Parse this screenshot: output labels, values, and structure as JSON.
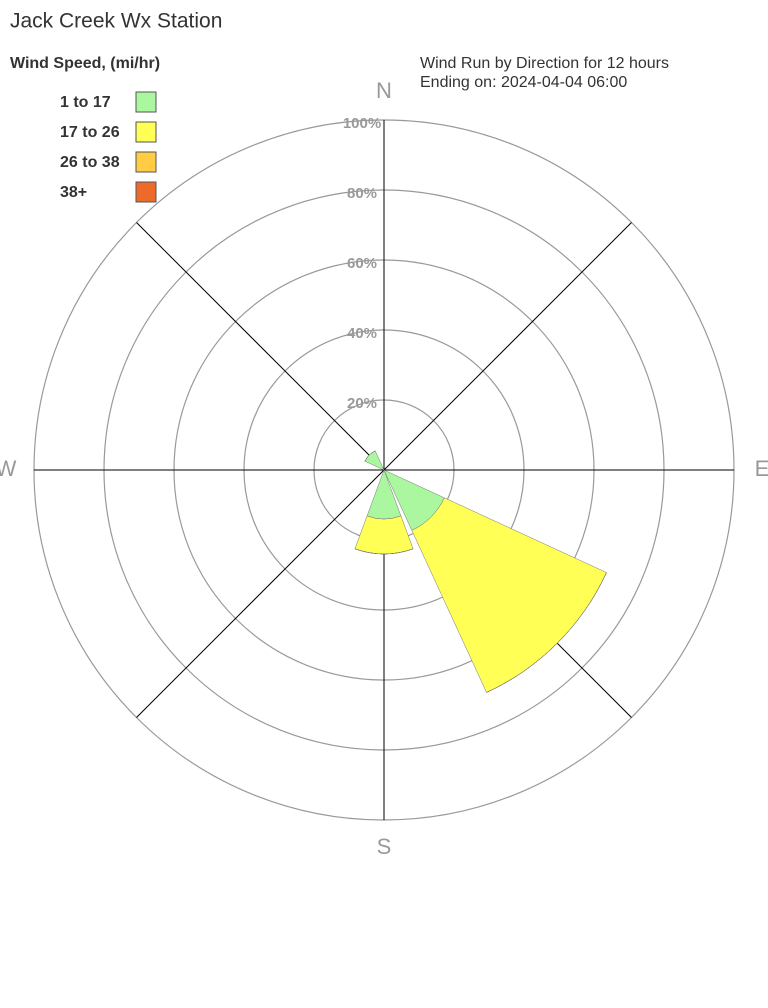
{
  "chart_data": {
    "type": "windrose",
    "title": "Jack Creek Wx Station",
    "legend_title": "Wind Speed, (mi/hr)",
    "subtitle": [
      "Wind Run by Direction for 12 hours",
      "Ending on: 2024-04-04 06:00"
    ],
    "categories": [
      "N",
      null,
      "E",
      null,
      "S",
      null,
      "W",
      null
    ],
    "series": [
      {
        "name": "1 to 17",
        "color": "#aaf7a0",
        "values": [
          0,
          0,
          0,
          19,
          14,
          0,
          0,
          6
        ]
      },
      {
        "name": "17 to 26",
        "color": "#ffff55",
        "values": [
          0,
          0,
          0,
          51,
          10,
          0,
          0,
          0
        ]
      },
      {
        "name": "26 to 38",
        "color": "#ffcc44",
        "values": [
          0,
          0,
          0,
          0,
          0,
          0,
          0,
          0
        ]
      },
      {
        "name": "38+",
        "color": "#ee6a2a",
        "values": [
          0,
          0,
          0,
          0,
          0,
          0,
          0,
          0
        ]
      }
    ],
    "rlim": [
      0,
      100
    ],
    "rticks": [
      {
        "value": 20,
        "label": "20%"
      },
      {
        "value": 40,
        "label": "40%"
      },
      {
        "value": 60,
        "label": "60%"
      },
      {
        "value": 80,
        "label": "80%"
      },
      {
        "value": 100,
        "label": "100%"
      }
    ]
  }
}
